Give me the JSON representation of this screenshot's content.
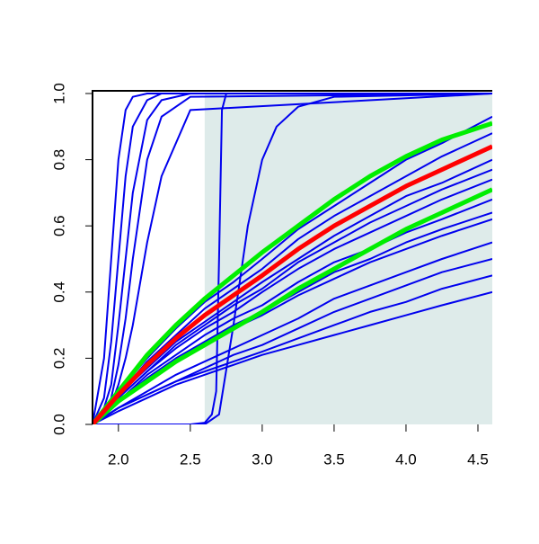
{
  "chart_data": {
    "type": "line",
    "xlim": [
      1.82,
      4.6
    ],
    "ylim": [
      0,
      1
    ],
    "xticks": [
      {
        "value": 2,
        "label": "2.0"
      },
      2.5,
      {
        "value": 3,
        "label": "3.0"
      },
      3.5,
      {
        "value": 4,
        "label": "4.0"
      },
      4.5
    ],
    "yticks": [
      {
        "value": 0,
        "label": "0.0"
      },
      0.2,
      0.4,
      0.6,
      0.8,
      {
        "value": 1,
        "label": "1.0"
      }
    ],
    "shaded_region": [
      2.6,
      4.6
    ],
    "shade_color": "#deebea",
    "series": [
      {
        "color": "#0000ee",
        "x": [
          1.82,
          1.9,
          1.95,
          2.0,
          2.05,
          2.1,
          2.2,
          2.3,
          2.5,
          4.6
        ],
        "values": [
          0,
          0.2,
          0.5,
          0.8,
          0.95,
          0.99,
          1,
          1,
          1,
          1
        ]
      },
      {
        "color": "#0000ee",
        "x": [
          1.82,
          1.9,
          1.95,
          2.0,
          2.05,
          2.1,
          2.2,
          2.3,
          2.5,
          4.6
        ],
        "values": [
          0,
          0.08,
          0.25,
          0.5,
          0.75,
          0.9,
          0.98,
          1,
          1,
          1
        ]
      },
      {
        "color": "#0000ee",
        "x": [
          1.82,
          1.9,
          1.95,
          2.0,
          2.05,
          2.1,
          2.2,
          2.3,
          2.5,
          4.6
        ],
        "values": [
          0,
          0.05,
          0.12,
          0.3,
          0.5,
          0.7,
          0.92,
          0.98,
          1,
          1
        ]
      },
      {
        "color": "#0000ee",
        "x": [
          1.82,
          1.9,
          1.95,
          2.0,
          2.05,
          2.1,
          2.2,
          2.3,
          2.5,
          4.6
        ],
        "values": [
          0,
          0.04,
          0.08,
          0.18,
          0.32,
          0.5,
          0.8,
          0.93,
          0.99,
          1
        ]
      },
      {
        "color": "#0000ee",
        "x": [
          1.82,
          1.9,
          1.95,
          2.0,
          2.05,
          2.1,
          2.2,
          2.3,
          2.5,
          4.6
        ],
        "values": [
          0,
          0.03,
          0.06,
          0.12,
          0.2,
          0.3,
          0.55,
          0.75,
          0.95,
          1
        ]
      },
      {
        "color": "#0000ee",
        "x": [
          1.82,
          2.5,
          2.6,
          2.65,
          2.68,
          2.7,
          2.72,
          2.75,
          4.6
        ],
        "values": [
          0,
          0,
          0.005,
          0.03,
          0.1,
          0.5,
          0.95,
          1,
          1
        ]
      },
      {
        "color": "#0000ee",
        "x": [
          1.82,
          2.6,
          2.7,
          2.8,
          2.9,
          3.0,
          3.1,
          3.25,
          3.5,
          4.6
        ],
        "values": [
          0,
          0,
          0.03,
          0.3,
          0.6,
          0.8,
          0.9,
          0.96,
          0.99,
          1
        ]
      },
      {
        "color": "#0000ee",
        "x": [
          1.82,
          2.0,
          2.2,
          2.4,
          2.6,
          2.8,
          3.0,
          3.25,
          3.5,
          3.75,
          4.0,
          4.25,
          4.6
        ],
        "values": [
          0,
          0.1,
          0.2,
          0.29,
          0.37,
          0.43,
          0.5,
          0.59,
          0.66,
          0.73,
          0.8,
          0.85,
          0.93
        ]
      },
      {
        "color": "#0000ee",
        "x": [
          1.82,
          2.0,
          2.2,
          2.4,
          2.6,
          2.8,
          3.0,
          3.25,
          3.5,
          3.75,
          4.0,
          4.25,
          4.6
        ],
        "values": [
          0,
          0.09,
          0.19,
          0.27,
          0.35,
          0.41,
          0.47,
          0.56,
          0.63,
          0.69,
          0.75,
          0.81,
          0.88
        ]
      },
      {
        "color": "#0000ee",
        "x": [
          1.82,
          2.0,
          2.2,
          2.4,
          2.6,
          2.8,
          3.0,
          3.25,
          3.5,
          3.75,
          4.0,
          4.25,
          4.6
        ],
        "values": [
          0,
          0.09,
          0.17,
          0.25,
          0.31,
          0.37,
          0.43,
          0.5,
          0.57,
          0.63,
          0.69,
          0.73,
          0.8
        ]
      },
      {
        "color": "#0000ee",
        "x": [
          1.82,
          2.0,
          2.2,
          2.4,
          2.6,
          2.8,
          3.0,
          3.25,
          3.5,
          3.75,
          4.0,
          4.25,
          4.6
        ],
        "values": [
          0,
          0.08,
          0.16,
          0.24,
          0.3,
          0.36,
          0.41,
          0.49,
          0.55,
          0.61,
          0.66,
          0.71,
          0.77
        ]
      },
      {
        "color": "#0000ee",
        "x": [
          1.82,
          2.0,
          2.2,
          2.4,
          2.6,
          2.8,
          3.0,
          3.25,
          3.5,
          3.75,
          4.0,
          4.25,
          4.6
        ],
        "values": [
          0,
          0.08,
          0.16,
          0.23,
          0.29,
          0.34,
          0.4,
          0.47,
          0.53,
          0.58,
          0.63,
          0.68,
          0.74
        ]
      },
      {
        "color": "#0000ee",
        "x": [
          1.82,
          2.0,
          2.2,
          2.4,
          2.6,
          2.8,
          3.0,
          3.25,
          3.5,
          3.75,
          4.0,
          4.25,
          4.6
        ],
        "values": [
          0,
          0.07,
          0.15,
          0.21,
          0.27,
          0.32,
          0.36,
          0.43,
          0.49,
          0.53,
          0.58,
          0.62,
          0.68
        ]
      },
      {
        "color": "#0000ee",
        "x": [
          1.82,
          2.0,
          2.2,
          2.4,
          2.6,
          2.8,
          3.0,
          3.25,
          3.5,
          3.75,
          4.0,
          4.25,
          4.6
        ],
        "values": [
          0,
          0.07,
          0.14,
          0.2,
          0.25,
          0.3,
          0.34,
          0.4,
          0.46,
          0.5,
          0.55,
          0.59,
          0.64
        ]
      },
      {
        "color": "#0000ee",
        "x": [
          1.82,
          2.0,
          2.2,
          2.4,
          2.6,
          2.8,
          3.0,
          3.25,
          3.5,
          3.75,
          4.0,
          4.25,
          4.6
        ],
        "values": [
          0,
          0.07,
          0.13,
          0.19,
          0.24,
          0.29,
          0.33,
          0.39,
          0.44,
          0.49,
          0.53,
          0.57,
          0.62
        ]
      },
      {
        "color": "#0000ee",
        "x": [
          1.82,
          2.0,
          2.2,
          2.4,
          2.6,
          2.8,
          3.0,
          3.25,
          3.5,
          3.75,
          4.0,
          4.25,
          4.6
        ],
        "values": [
          0,
          0.05,
          0.1,
          0.15,
          0.19,
          0.23,
          0.27,
          0.32,
          0.38,
          0.42,
          0.46,
          0.5,
          0.55
        ]
      },
      {
        "color": "#0000ee",
        "x": [
          1.82,
          2.0,
          2.2,
          2.4,
          2.6,
          2.8,
          3.0,
          3.25,
          3.5,
          3.75,
          4.0,
          4.25,
          4.6
        ],
        "values": [
          0,
          0.05,
          0.09,
          0.13,
          0.17,
          0.21,
          0.24,
          0.29,
          0.34,
          0.38,
          0.42,
          0.46,
          0.5
        ]
      },
      {
        "color": "#0000ee",
        "x": [
          1.82,
          2.0,
          2.2,
          2.4,
          2.6,
          2.8,
          3.0,
          3.25,
          3.5,
          3.75,
          4.0,
          4.25,
          4.6
        ],
        "values": [
          0,
          0.05,
          0.09,
          0.13,
          0.16,
          0.19,
          0.22,
          0.26,
          0.3,
          0.34,
          0.37,
          0.41,
          0.45
        ]
      },
      {
        "color": "#0000ee",
        "x": [
          1.82,
          2.0,
          2.2,
          2.4,
          2.6,
          2.8,
          3.0,
          3.25,
          3.5,
          3.75,
          4.0,
          4.25,
          4.6
        ],
        "values": [
          0,
          0.04,
          0.08,
          0.12,
          0.15,
          0.18,
          0.21,
          0.24,
          0.27,
          0.3,
          0.33,
          0.36,
          0.4
        ]
      },
      {
        "color": "#00ee00",
        "emphasis": true,
        "x": [
          1.82,
          2.0,
          2.2,
          2.4,
          2.6,
          2.8,
          3.0,
          3.25,
          3.5,
          3.75,
          4.0,
          4.25,
          4.6
        ],
        "values": [
          0,
          0.1,
          0.21,
          0.3,
          0.38,
          0.45,
          0.52,
          0.6,
          0.68,
          0.75,
          0.81,
          0.86,
          0.91
        ]
      },
      {
        "color": "#00ee00",
        "emphasis": true,
        "x": [
          1.82,
          2.0,
          2.2,
          2.4,
          2.6,
          2.8,
          3.0,
          3.25,
          3.5,
          3.75,
          4.0,
          4.25,
          4.6
        ],
        "values": [
          0,
          0.07,
          0.13,
          0.19,
          0.24,
          0.29,
          0.34,
          0.41,
          0.47,
          0.53,
          0.59,
          0.64,
          0.71
        ]
      },
      {
        "color": "#ff0000",
        "emphasis": true,
        "x": [
          1.82,
          2.0,
          2.2,
          2.4,
          2.6,
          2.8,
          3.0,
          3.25,
          3.5,
          3.75,
          4.0,
          4.25,
          4.6
        ],
        "values": [
          0,
          0.09,
          0.18,
          0.26,
          0.33,
          0.39,
          0.45,
          0.53,
          0.6,
          0.66,
          0.72,
          0.77,
          0.84
        ]
      }
    ]
  }
}
